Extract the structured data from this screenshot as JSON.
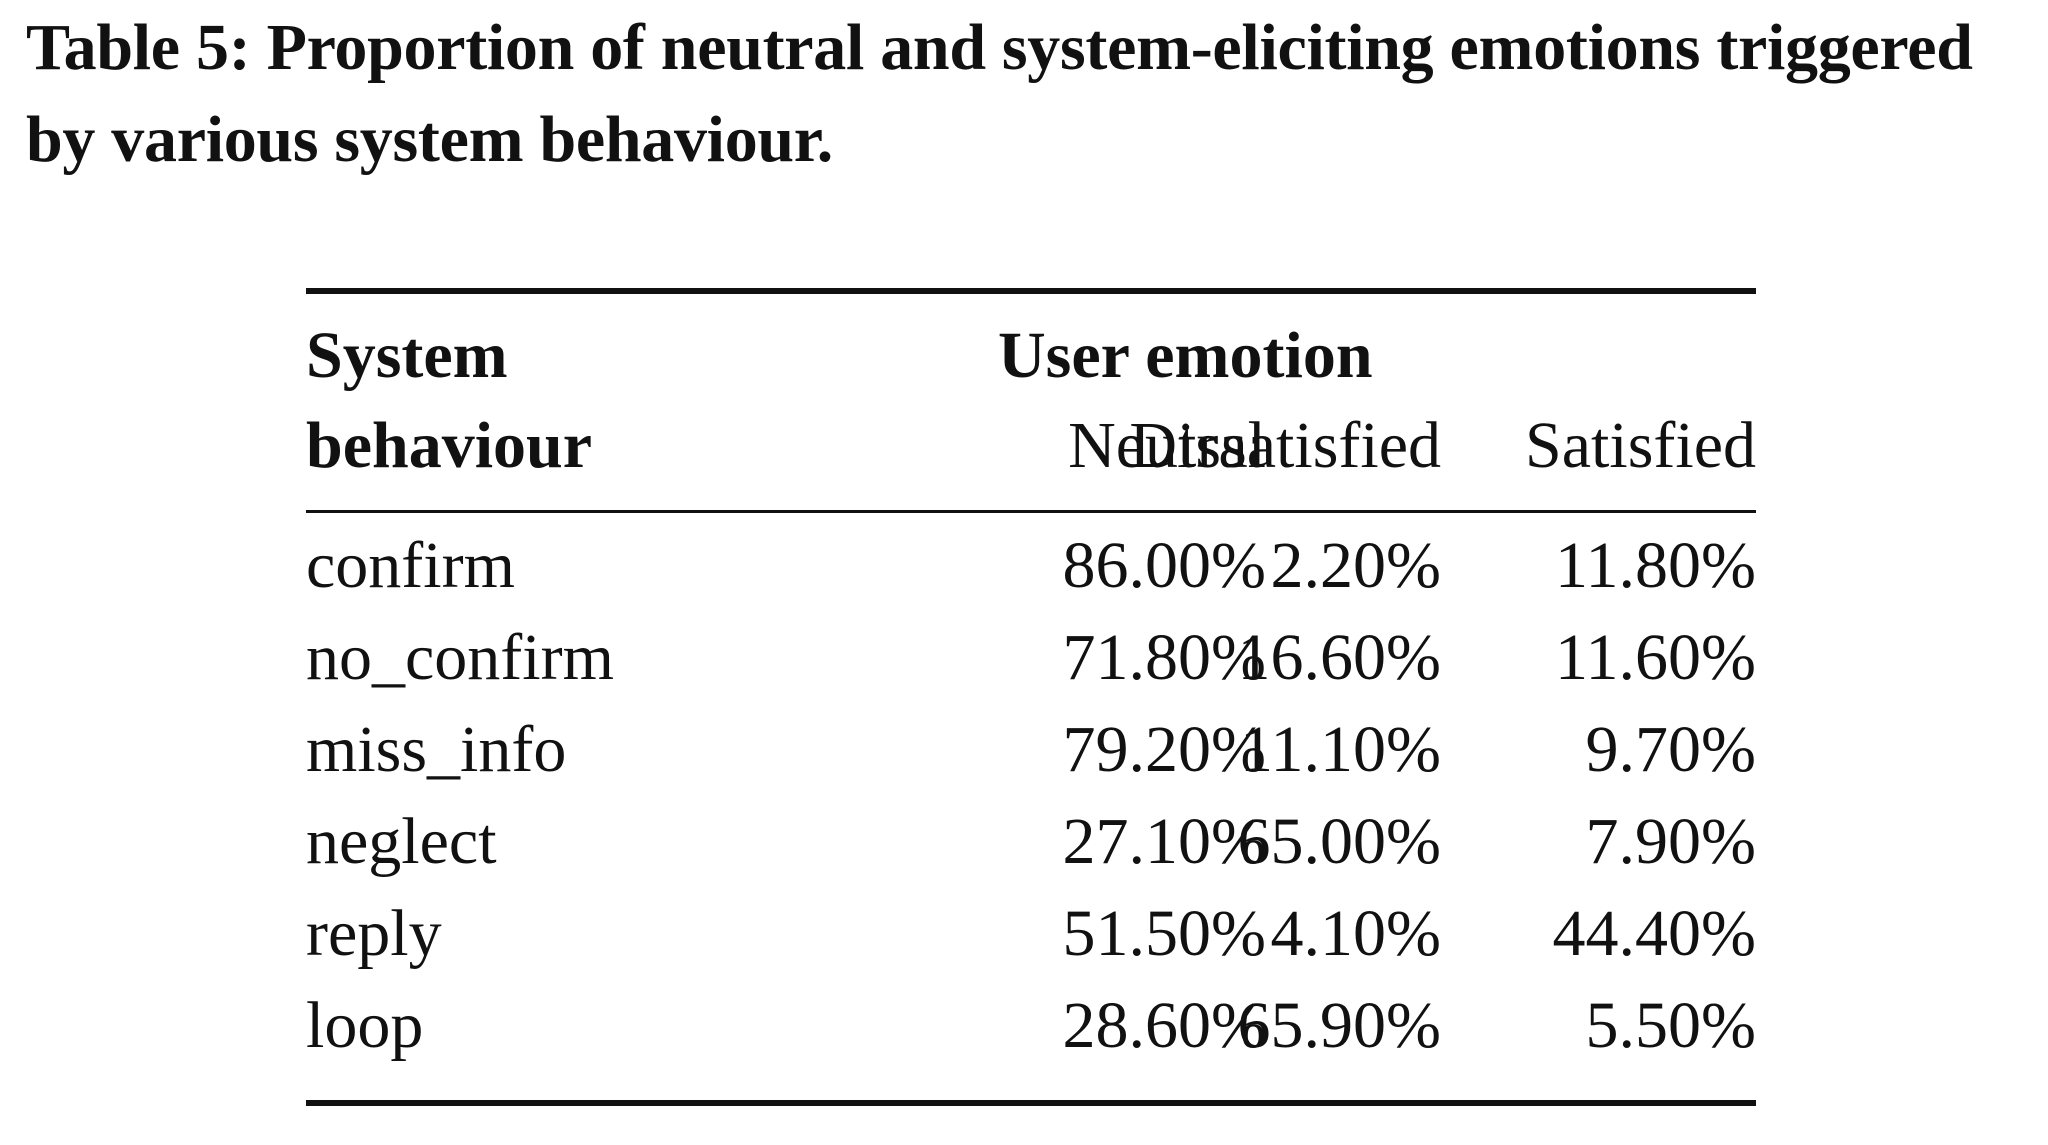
{
  "caption": "Table 5: Proportion of neutral and system-eliciting emotions triggered by various system behaviour.",
  "table": {
    "header": {
      "row_label_line1": "System",
      "row_label_line2": "behaviour",
      "group_label": "User emotion",
      "columns": [
        "Neutral",
        "Dissatisfied",
        "Satisfied"
      ]
    },
    "rows": [
      {
        "behaviour": "confirm",
        "neutral": "86.00%",
        "dissatisfied": "2.20%",
        "satisfied": "11.80%"
      },
      {
        "behaviour": "no_confirm",
        "neutral": "71.80%",
        "dissatisfied": "16.60%",
        "satisfied": "11.60%"
      },
      {
        "behaviour": "miss_info",
        "neutral": "79.20%",
        "dissatisfied": "11.10%",
        "satisfied": "9.70%"
      },
      {
        "behaviour": "neglect",
        "neutral": "27.10%",
        "dissatisfied": "65.00%",
        "satisfied": "7.90%"
      },
      {
        "behaviour": "reply",
        "neutral": "51.50%",
        "dissatisfied": "4.10%",
        "satisfied": "44.40%"
      },
      {
        "behaviour": "loop",
        "neutral": "28.60%",
        "dissatisfied": "65.90%",
        "satisfied": "5.50%"
      }
    ]
  }
}
